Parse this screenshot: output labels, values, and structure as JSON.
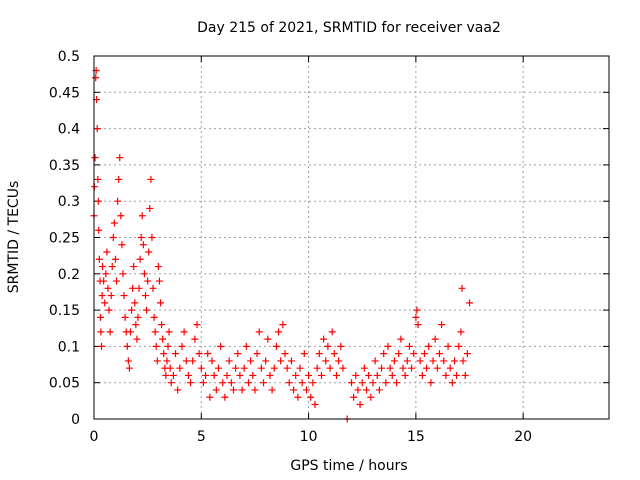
{
  "chart_data": {
    "type": "scatter",
    "title": "Day 215 of 2021, SRMTID for receiver vaa2",
    "xlabel": "GPS time / hours",
    "ylabel": "SRMTID / TECUs",
    "xlim": [
      0,
      24
    ],
    "ylim": [
      0,
      0.5
    ],
    "x_ticks": [
      "0",
      "5",
      "10",
      "15",
      "20"
    ],
    "y_ticks": [
      "0",
      "0.05",
      "0.1",
      "0.15",
      "0.2",
      "0.25",
      "0.3",
      "0.35",
      "0.4",
      "0.45",
      "0.5"
    ],
    "grid": true,
    "marker": "+",
    "color": "#ff0000",
    "series": [
      {
        "name": "vaa2",
        "points": [
          [
            0.0,
            0.28
          ],
          [
            0.02,
            0.32
          ],
          [
            0.05,
            0.36
          ],
          [
            0.08,
            0.47
          ],
          [
            0.1,
            0.48
          ],
          [
            0.12,
            0.44
          ],
          [
            0.15,
            0.4
          ],
          [
            0.18,
            0.33
          ],
          [
            0.2,
            0.3
          ],
          [
            0.22,
            0.26
          ],
          [
            0.25,
            0.22
          ],
          [
            0.28,
            0.19
          ],
          [
            0.3,
            0.14
          ],
          [
            0.32,
            0.12
          ],
          [
            0.35,
            0.1
          ],
          [
            0.38,
            0.17
          ],
          [
            0.4,
            0.21
          ],
          [
            0.45,
            0.19
          ],
          [
            0.5,
            0.16
          ],
          [
            0.55,
            0.2
          ],
          [
            0.6,
            0.23
          ],
          [
            0.65,
            0.18
          ],
          [
            0.7,
            0.15
          ],
          [
            0.75,
            0.12
          ],
          [
            0.8,
            0.17
          ],
          [
            0.85,
            0.21
          ],
          [
            0.9,
            0.25
          ],
          [
            0.95,
            0.27
          ],
          [
            1.0,
            0.22
          ],
          [
            1.05,
            0.19
          ],
          [
            1.1,
            0.3
          ],
          [
            1.15,
            0.33
          ],
          [
            1.2,
            0.36
          ],
          [
            1.25,
            0.28
          ],
          [
            1.3,
            0.24
          ],
          [
            1.35,
            0.2
          ],
          [
            1.4,
            0.17
          ],
          [
            1.45,
            0.14
          ],
          [
            1.5,
            0.12
          ],
          [
            1.55,
            0.1
          ],
          [
            1.6,
            0.08
          ],
          [
            1.65,
            0.07
          ],
          [
            1.7,
            0.12
          ],
          [
            1.75,
            0.15
          ],
          [
            1.8,
            0.18
          ],
          [
            1.85,
            0.21
          ],
          [
            1.9,
            0.16
          ],
          [
            1.95,
            0.13
          ],
          [
            2.0,
            0.11
          ],
          [
            2.05,
            0.14
          ],
          [
            2.1,
            0.18
          ],
          [
            2.15,
            0.22
          ],
          [
            2.2,
            0.25
          ],
          [
            2.25,
            0.28
          ],
          [
            2.3,
            0.24
          ],
          [
            2.35,
            0.2
          ],
          [
            2.4,
            0.17
          ],
          [
            2.45,
            0.15
          ],
          [
            2.5,
            0.19
          ],
          [
            2.55,
            0.23
          ],
          [
            2.6,
            0.29
          ],
          [
            2.65,
            0.33
          ],
          [
            2.7,
            0.25
          ],
          [
            2.75,
            0.18
          ],
          [
            2.8,
            0.14
          ],
          [
            2.85,
            0.12
          ],
          [
            2.9,
            0.1
          ],
          [
            2.95,
            0.08
          ],
          [
            3.0,
            0.21
          ],
          [
            3.05,
            0.19
          ],
          [
            3.1,
            0.16
          ],
          [
            3.15,
            0.13
          ],
          [
            3.2,
            0.11
          ],
          [
            3.25,
            0.09
          ],
          [
            3.3,
            0.07
          ],
          [
            3.35,
            0.06
          ],
          [
            3.4,
            0.08
          ],
          [
            3.45,
            0.1
          ],
          [
            3.5,
            0.12
          ],
          [
            3.55,
            0.07
          ],
          [
            3.6,
            0.05
          ],
          [
            3.7,
            0.06
          ],
          [
            3.8,
            0.09
          ],
          [
            3.9,
            0.04
          ],
          [
            4.0,
            0.07
          ],
          [
            4.1,
            0.1
          ],
          [
            4.2,
            0.12
          ],
          [
            4.3,
            0.08
          ],
          [
            4.4,
            0.06
          ],
          [
            4.5,
            0.05
          ],
          [
            4.6,
            0.08
          ],
          [
            4.7,
            0.11
          ],
          [
            4.8,
            0.13
          ],
          [
            4.9,
            0.09
          ],
          [
            5.0,
            0.07
          ],
          [
            5.1,
            0.05
          ],
          [
            5.2,
            0.06
          ],
          [
            5.3,
            0.09
          ],
          [
            5.4,
            0.03
          ],
          [
            5.5,
            0.08
          ],
          [
            5.6,
            0.06
          ],
          [
            5.7,
            0.04
          ],
          [
            5.8,
            0.07
          ],
          [
            5.9,
            0.1
          ],
          [
            6.0,
            0.05
          ],
          [
            6.1,
            0.03
          ],
          [
            6.2,
            0.06
          ],
          [
            6.3,
            0.08
          ],
          [
            6.4,
            0.05
          ],
          [
            6.5,
            0.04
          ],
          [
            6.6,
            0.07
          ],
          [
            6.7,
            0.09
          ],
          [
            6.8,
            0.06
          ],
          [
            6.9,
            0.04
          ],
          [
            7.0,
            0.07
          ],
          [
            7.1,
            0.1
          ],
          [
            7.2,
            0.05
          ],
          [
            7.3,
            0.08
          ],
          [
            7.4,
            0.06
          ],
          [
            7.5,
            0.04
          ],
          [
            7.6,
            0.09
          ],
          [
            7.7,
            0.12
          ],
          [
            7.8,
            0.07
          ],
          [
            7.9,
            0.05
          ],
          [
            8.0,
            0.08
          ],
          [
            8.1,
            0.11
          ],
          [
            8.2,
            0.06
          ],
          [
            8.3,
            0.04
          ],
          [
            8.4,
            0.07
          ],
          [
            8.5,
            0.1
          ],
          [
            8.6,
            0.12
          ],
          [
            8.7,
            0.08
          ],
          [
            8.8,
            0.13
          ],
          [
            8.9,
            0.09
          ],
          [
            9.0,
            0.07
          ],
          [
            9.1,
            0.05
          ],
          [
            9.2,
            0.08
          ],
          [
            9.3,
            0.04
          ],
          [
            9.4,
            0.06
          ],
          [
            9.5,
            0.03
          ],
          [
            9.6,
            0.07
          ],
          [
            9.7,
            0.05
          ],
          [
            9.8,
            0.09
          ],
          [
            9.9,
            0.04
          ],
          [
            10.0,
            0.06
          ],
          [
            10.1,
            0.03
          ],
          [
            10.2,
            0.05
          ],
          [
            10.3,
            0.02
          ],
          [
            10.4,
            0.07
          ],
          [
            10.5,
            0.09
          ],
          [
            10.6,
            0.06
          ],
          [
            10.7,
            0.11
          ],
          [
            10.8,
            0.08
          ],
          [
            10.9,
            0.1
          ],
          [
            11.0,
            0.07
          ],
          [
            11.1,
            0.12
          ],
          [
            11.2,
            0.09
          ],
          [
            11.3,
            0.06
          ],
          [
            11.4,
            0.08
          ],
          [
            11.5,
            0.1
          ],
          [
            11.6,
            0.07
          ],
          [
            11.8,
            0.0
          ],
          [
            12.0,
            0.05
          ],
          [
            12.1,
            0.03
          ],
          [
            12.2,
            0.06
          ],
          [
            12.3,
            0.04
          ],
          [
            12.4,
            0.02
          ],
          [
            12.5,
            0.05
          ],
          [
            12.6,
            0.07
          ],
          [
            12.7,
            0.04
          ],
          [
            12.8,
            0.06
          ],
          [
            12.9,
            0.03
          ],
          [
            13.0,
            0.05
          ],
          [
            13.1,
            0.08
          ],
          [
            13.2,
            0.06
          ],
          [
            13.3,
            0.04
          ],
          [
            13.4,
            0.07
          ],
          [
            13.5,
            0.09
          ],
          [
            13.6,
            0.05
          ],
          [
            13.7,
            0.1
          ],
          [
            13.8,
            0.07
          ],
          [
            13.9,
            0.06
          ],
          [
            14.0,
            0.08
          ],
          [
            14.1,
            0.05
          ],
          [
            14.2,
            0.09
          ],
          [
            14.3,
            0.11
          ],
          [
            14.4,
            0.07
          ],
          [
            14.5,
            0.06
          ],
          [
            14.6,
            0.08
          ],
          [
            14.7,
            0.1
          ],
          [
            14.8,
            0.07
          ],
          [
            14.9,
            0.09
          ],
          [
            15.0,
            0.14
          ],
          [
            15.05,
            0.15
          ],
          [
            15.1,
            0.13
          ],
          [
            15.2,
            0.08
          ],
          [
            15.3,
            0.06
          ],
          [
            15.4,
            0.09
          ],
          [
            15.5,
            0.07
          ],
          [
            15.6,
            0.1
          ],
          [
            15.7,
            0.05
          ],
          [
            15.8,
            0.08
          ],
          [
            15.9,
            0.11
          ],
          [
            16.0,
            0.07
          ],
          [
            16.1,
            0.09
          ],
          [
            16.2,
            0.13
          ],
          [
            16.3,
            0.08
          ],
          [
            16.4,
            0.06
          ],
          [
            16.5,
            0.1
          ],
          [
            16.6,
            0.07
          ],
          [
            16.7,
            0.05
          ],
          [
            16.8,
            0.08
          ],
          [
            16.9,
            0.06
          ],
          [
            17.0,
            0.1
          ],
          [
            17.1,
            0.12
          ],
          [
            17.15,
            0.18
          ],
          [
            17.2,
            0.08
          ],
          [
            17.3,
            0.06
          ],
          [
            17.4,
            0.09
          ],
          [
            17.5,
            0.16
          ]
        ]
      }
    ]
  }
}
